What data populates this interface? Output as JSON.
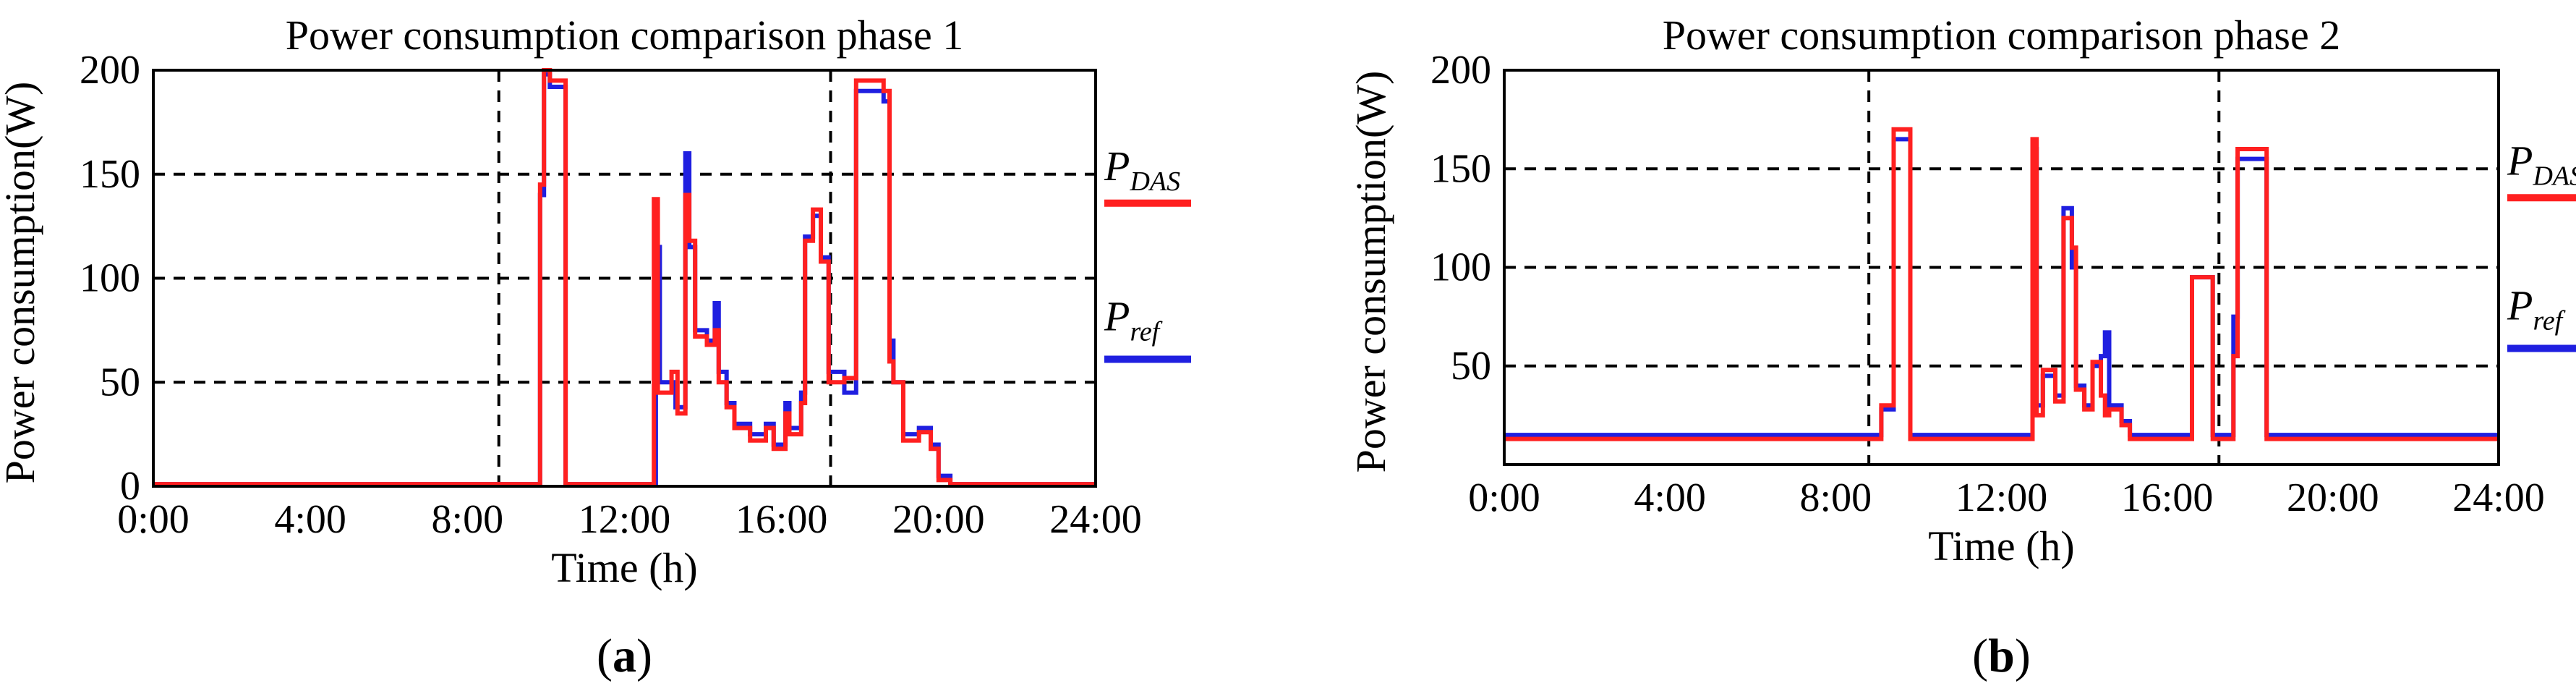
{
  "chart_data": [
    {
      "type": "line",
      "panel": "(a)",
      "panel_letter": "a",
      "title": "Power consumption comparison phase 1",
      "xlabel": "Time (h)",
      "ylabel": "Power consumption(W)",
      "xlim": [
        0,
        24
      ],
      "ylim": [
        0,
        200
      ],
      "xticks": [
        0,
        4,
        8,
        12,
        16,
        20,
        24
      ],
      "xtick_labels": [
        "0:00",
        "4:00",
        "8:00",
        "12:00",
        "16:00",
        "20:00",
        "24:00"
      ],
      "yticks": [
        0,
        50,
        100,
        150,
        200
      ],
      "ytick_labels": [
        "0",
        "50",
        "100",
        "150",
        "200"
      ],
      "grid_y": [
        50,
        100,
        150
      ],
      "vlines": [
        8.8,
        17.25
      ],
      "legend": [
        {
          "main": "P",
          "sub": "DAS",
          "color": "#ff2020"
        },
        {
          "main": "P",
          "sub": "ref",
          "color": "#1f1fe0"
        }
      ],
      "series": [
        {
          "name": "P_ref",
          "color": "#1f1fe0",
          "points": [
            [
              0,
              1
            ],
            [
              9.85,
              1
            ],
            [
              9.85,
              140
            ],
            [
              9.95,
              140
            ],
            [
              9.95,
              198
            ],
            [
              10.1,
              198
            ],
            [
              10.1,
              192
            ],
            [
              10.5,
              192
            ],
            [
              10.5,
              1
            ],
            [
              12.8,
              1
            ],
            [
              12.8,
              115
            ],
            [
              12.9,
              115
            ],
            [
              12.9,
              50
            ],
            [
              13.3,
              50
            ],
            [
              13.3,
              38
            ],
            [
              13.55,
              38
            ],
            [
              13.55,
              160
            ],
            [
              13.65,
              160
            ],
            [
              13.65,
              115
            ],
            [
              13.8,
              115
            ],
            [
              13.8,
              75
            ],
            [
              14.1,
              75
            ],
            [
              14.1,
              70
            ],
            [
              14.3,
              70
            ],
            [
              14.3,
              88
            ],
            [
              14.4,
              88
            ],
            [
              14.4,
              55
            ],
            [
              14.6,
              55
            ],
            [
              14.6,
              40
            ],
            [
              14.8,
              40
            ],
            [
              14.8,
              30
            ],
            [
              15.2,
              30
            ],
            [
              15.2,
              25
            ],
            [
              15.6,
              25
            ],
            [
              15.6,
              30
            ],
            [
              15.8,
              30
            ],
            [
              15.8,
              20
            ],
            [
              16.1,
              20
            ],
            [
              16.1,
              40
            ],
            [
              16.2,
              40
            ],
            [
              16.2,
              28
            ],
            [
              16.5,
              28
            ],
            [
              16.5,
              45
            ],
            [
              16.6,
              45
            ],
            [
              16.6,
              120
            ],
            [
              16.8,
              120
            ],
            [
              16.8,
              130
            ],
            [
              17.0,
              130
            ],
            [
              17.0,
              110
            ],
            [
              17.2,
              110
            ],
            [
              17.2,
              55
            ],
            [
              17.6,
              55
            ],
            [
              17.6,
              45
            ],
            [
              17.9,
              45
            ],
            [
              17.9,
              190
            ],
            [
              18.6,
              190
            ],
            [
              18.6,
              185
            ],
            [
              18.75,
              185
            ],
            [
              18.75,
              70
            ],
            [
              18.85,
              70
            ],
            [
              18.85,
              50
            ],
            [
              19.1,
              50
            ],
            [
              19.1,
              25
            ],
            [
              19.5,
              25
            ],
            [
              19.5,
              28
            ],
            [
              19.8,
              28
            ],
            [
              19.8,
              20
            ],
            [
              20.0,
              20
            ],
            [
              20.0,
              5
            ],
            [
              20.3,
              5
            ],
            [
              20.3,
              1
            ],
            [
              24,
              1
            ]
          ]
        },
        {
          "name": "P_DAS",
          "color": "#ff2020",
          "points": [
            [
              0,
              1
            ],
            [
              9.85,
              1
            ],
            [
              9.85,
              145
            ],
            [
              9.95,
              145
            ],
            [
              9.95,
              200
            ],
            [
              10.1,
              200
            ],
            [
              10.1,
              195
            ],
            [
              10.5,
              195
            ],
            [
              10.5,
              1
            ],
            [
              12.75,
              1
            ],
            [
              12.75,
              138
            ],
            [
              12.85,
              138
            ],
            [
              12.85,
              45
            ],
            [
              13.2,
              45
            ],
            [
              13.2,
              55
            ],
            [
              13.35,
              55
            ],
            [
              13.35,
              35
            ],
            [
              13.55,
              35
            ],
            [
              13.55,
              140
            ],
            [
              13.65,
              140
            ],
            [
              13.65,
              118
            ],
            [
              13.8,
              118
            ],
            [
              13.8,
              72
            ],
            [
              14.1,
              72
            ],
            [
              14.1,
              68
            ],
            [
              14.3,
              68
            ],
            [
              14.3,
              75
            ],
            [
              14.4,
              75
            ],
            [
              14.4,
              50
            ],
            [
              14.6,
              50
            ],
            [
              14.6,
              38
            ],
            [
              14.8,
              38
            ],
            [
              14.8,
              28
            ],
            [
              15.2,
              28
            ],
            [
              15.2,
              22
            ],
            [
              15.6,
              22
            ],
            [
              15.6,
              28
            ],
            [
              15.8,
              28
            ],
            [
              15.8,
              18
            ],
            [
              16.1,
              18
            ],
            [
              16.1,
              35
            ],
            [
              16.2,
              35
            ],
            [
              16.2,
              25
            ],
            [
              16.5,
              25
            ],
            [
              16.5,
              40
            ],
            [
              16.6,
              40
            ],
            [
              16.6,
              118
            ],
            [
              16.8,
              118
            ],
            [
              16.8,
              133
            ],
            [
              17.0,
              133
            ],
            [
              17.0,
              108
            ],
            [
              17.2,
              108
            ],
            [
              17.2,
              50
            ],
            [
              17.6,
              50
            ],
            [
              17.6,
              52
            ],
            [
              17.9,
              52
            ],
            [
              17.9,
              195
            ],
            [
              18.6,
              195
            ],
            [
              18.6,
              190
            ],
            [
              18.75,
              190
            ],
            [
              18.75,
              60
            ],
            [
              18.85,
              60
            ],
            [
              18.85,
              50
            ],
            [
              19.1,
              50
            ],
            [
              19.1,
              22
            ],
            [
              19.5,
              22
            ],
            [
              19.5,
              26
            ],
            [
              19.8,
              26
            ],
            [
              19.8,
              18
            ],
            [
              20.0,
              18
            ],
            [
              20.0,
              3
            ],
            [
              20.3,
              3
            ],
            [
              20.3,
              1
            ],
            [
              24,
              1
            ]
          ]
        }
      ]
    },
    {
      "type": "line",
      "panel": "(b)",
      "panel_letter": "b",
      "title": "Power consumption comparison phase 2",
      "xlabel": "Time (h)",
      "ylabel": "Power consumption(W)",
      "xlim": [
        0,
        24
      ],
      "ylim": [
        0,
        200
      ],
      "xticks": [
        0,
        4,
        8,
        12,
        16,
        20,
        24
      ],
      "xtick_labels": [
        "0:00",
        "4:00",
        "8:00",
        "12:00",
        "16:00",
        "20:00",
        "24:00"
      ],
      "yticks": [
        50,
        100,
        150,
        200
      ],
      "ytick_labels": [
        "50",
        "100",
        "150",
        "200"
      ],
      "grid_y": [
        50,
        100,
        150
      ],
      "vlines": [
        8.8,
        17.25
      ],
      "legend": [
        {
          "main": "P",
          "sub": "DAS",
          "color": "#ff2020"
        },
        {
          "main": "P",
          "sub": "ref",
          "color": "#1f1fe0"
        }
      ],
      "series": [
        {
          "name": "P_ref",
          "color": "#1f1fe0",
          "points": [
            [
              0,
              15
            ],
            [
              9.1,
              15
            ],
            [
              9.1,
              28
            ],
            [
              9.4,
              28
            ],
            [
              9.4,
              165
            ],
            [
              9.8,
              165
            ],
            [
              9.8,
              15
            ],
            [
              12.75,
              15
            ],
            [
              12.75,
              160
            ],
            [
              12.85,
              160
            ],
            [
              12.85,
              30
            ],
            [
              13.0,
              30
            ],
            [
              13.0,
              45
            ],
            [
              13.3,
              45
            ],
            [
              13.3,
              35
            ],
            [
              13.5,
              35
            ],
            [
              13.5,
              130
            ],
            [
              13.7,
              130
            ],
            [
              13.7,
              100
            ],
            [
              13.8,
              100
            ],
            [
              13.8,
              40
            ],
            [
              14.0,
              40
            ],
            [
              14.0,
              30
            ],
            [
              14.2,
              30
            ],
            [
              14.2,
              50
            ],
            [
              14.4,
              50
            ],
            [
              14.4,
              55
            ],
            [
              14.5,
              55
            ],
            [
              14.5,
              67
            ],
            [
              14.6,
              67
            ],
            [
              14.6,
              30
            ],
            [
              14.9,
              30
            ],
            [
              14.9,
              22
            ],
            [
              15.1,
              22
            ],
            [
              15.1,
              15
            ],
            [
              16.6,
              15
            ],
            [
              16.6,
              95
            ],
            [
              17.1,
              95
            ],
            [
              17.1,
              15
            ],
            [
              17.6,
              15
            ],
            [
              17.6,
              75
            ],
            [
              17.7,
              75
            ],
            [
              17.7,
              155
            ],
            [
              18.4,
              155
            ],
            [
              18.4,
              15
            ],
            [
              24,
              15
            ]
          ]
        },
        {
          "name": "P_DAS",
          "color": "#ff2020",
          "points": [
            [
              0,
              13
            ],
            [
              9.1,
              13
            ],
            [
              9.1,
              30
            ],
            [
              9.4,
              30
            ],
            [
              9.4,
              170
            ],
            [
              9.8,
              170
            ],
            [
              9.8,
              13
            ],
            [
              12.75,
              13
            ],
            [
              12.75,
              165
            ],
            [
              12.85,
              165
            ],
            [
              12.85,
              25
            ],
            [
              13.0,
              25
            ],
            [
              13.0,
              48
            ],
            [
              13.3,
              48
            ],
            [
              13.3,
              32
            ],
            [
              13.5,
              32
            ],
            [
              13.5,
              125
            ],
            [
              13.7,
              125
            ],
            [
              13.7,
              110
            ],
            [
              13.8,
              110
            ],
            [
              13.8,
              38
            ],
            [
              14.0,
              38
            ],
            [
              14.0,
              28
            ],
            [
              14.2,
              28
            ],
            [
              14.2,
              52
            ],
            [
              14.4,
              52
            ],
            [
              14.4,
              35
            ],
            [
              14.5,
              35
            ],
            [
              14.5,
              25
            ],
            [
              14.6,
              25
            ],
            [
              14.6,
              28
            ],
            [
              14.9,
              28
            ],
            [
              14.9,
              20
            ],
            [
              15.1,
              20
            ],
            [
              15.1,
              13
            ],
            [
              16.6,
              13
            ],
            [
              16.6,
              95
            ],
            [
              17.1,
              95
            ],
            [
              17.1,
              13
            ],
            [
              17.6,
              13
            ],
            [
              17.6,
              55
            ],
            [
              17.7,
              55
            ],
            [
              17.7,
              160
            ],
            [
              18.4,
              160
            ],
            [
              18.4,
              13
            ],
            [
              24,
              13
            ]
          ]
        }
      ]
    }
  ]
}
